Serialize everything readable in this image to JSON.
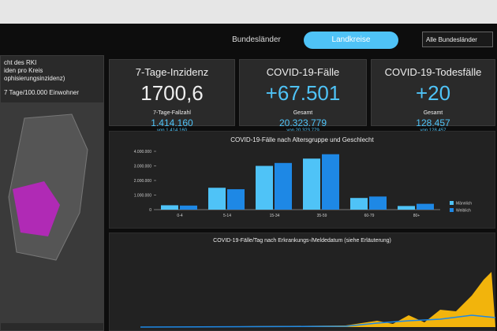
{
  "header": {
    "tabs": [
      "Bundesländer",
      "Landkreise"
    ],
    "active_tab": 1,
    "dropdown": "Alle Bundesländer"
  },
  "map_panel": {
    "title_lines": [
      "cht des RKI",
      "iden pro Kreis",
      "ophisierungsinzidenz)"
    ],
    "subtitle": "7 Tage/100.000 Einwohner"
  },
  "cards": [
    {
      "title": "7-Tage-Inzidenz",
      "value": "1700,6",
      "sub_label": "7-Tage-Fallzahl",
      "sub_value": "1.414.160",
      "note": "von 1.414.160"
    },
    {
      "title": "COVID-19-Fälle",
      "value": "+67.501",
      "sub_label": "Gesamt",
      "sub_value": "20.323.779",
      "note": "von 20.323.779"
    },
    {
      "title": "COVID-19-Todesfälle",
      "value": "+20",
      "sub_label": "Gesamt",
      "sub_value": "128.457",
      "note": "von 128.457"
    }
  ],
  "chart_data": {
    "type": "bar",
    "title": "COVID-19-Fälle nach Altersgruppe und Geschlecht",
    "categories": [
      "0-4",
      "5-14",
      "15-34",
      "35-59",
      "60-79",
      "80+"
    ],
    "series": [
      {
        "name": "Männlich",
        "color": "#4fc3f7",
        "values": [
          300000,
          1500000,
          3000000,
          3500000,
          800000,
          250000
        ]
      },
      {
        "name": "Weiblich",
        "color": "#1e88e5",
        "values": [
          280000,
          1400000,
          3200000,
          3800000,
          900000,
          400000
        ]
      }
    ],
    "ylim": [
      0,
      4000000
    ],
    "yticks": [
      0,
      {
        "value": 1000000,
        "label": "1.000.000"
      },
      {
        "value": 2000000,
        "label": "2.000.000"
      },
      {
        "value": 3000000,
        "label": "3.000.000"
      },
      {
        "value": 4000000,
        "label": "4.000.000"
      }
    ],
    "legend": "right"
  },
  "daily_chart": {
    "title": "COVID-19-Fälle/Tag nach Erkrankungs-/Meldedatum (siehe Erläuterung)"
  }
}
